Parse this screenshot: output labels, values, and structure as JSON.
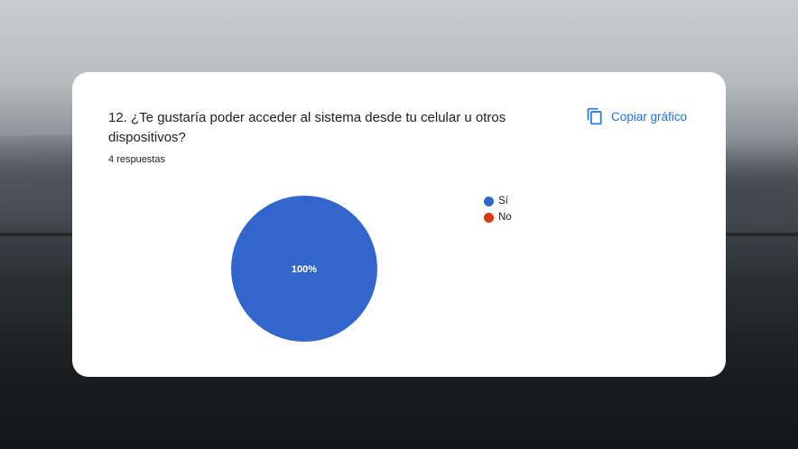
{
  "card": {
    "question": "12. ¿Te gustaría poder acceder al sistema desde tu celular u otros dispositivos?",
    "responses": "4 respuestas",
    "copy_label": "Copiar gráfico",
    "copy_icon": "copy-icon"
  },
  "colors": {
    "accent": "#1a73e8",
    "si": "#3366cc",
    "no": "#dc3912"
  },
  "chart_data": {
    "type": "pie",
    "categories": [
      "Sí",
      "No"
    ],
    "values": [
      100,
      0
    ],
    "slice_labels": [
      "100%",
      ""
    ],
    "legend": [
      "Sí",
      "No"
    ],
    "legend_placement": "right",
    "colors": [
      "#3366cc",
      "#dc3912"
    ]
  }
}
